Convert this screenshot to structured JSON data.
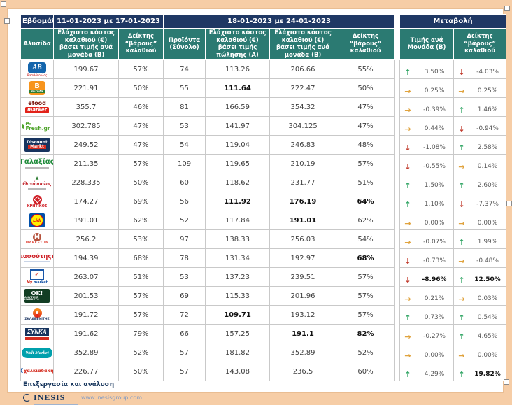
{
  "table": {
    "week_label": "Εβδομάδα:",
    "week1": "11-01-2023 με 17-01-2023",
    "week2": "18-01-2023 με 24-01-2023",
    "change_label": "Μεταβολή",
    "columns": [
      {
        "label": "Αλυσίδα"
      },
      {
        "label": "Ελάχιστο κόστος καλαθιού (€) βάσει τιμής ανά μονάδα (Β)"
      },
      {
        "label": "Δείκτης “βάρους” καλαθιού"
      },
      {
        "label": "Προϊόντα (Σύνολο)"
      },
      {
        "label": "Ελάχιστο κόστος καλαθιού (€) βάσει τιμής πώλησης (Α)"
      },
      {
        "label": "Ελάχιστο κόστος καλαθιού (€) βάσει τιμής ανά μονάδα (Β)"
      },
      {
        "label": "Δείκτης “βάρους” καλαθιού"
      },
      {
        "label": "Τιμής ανά Μονάδα (Β)"
      },
      {
        "label": "Δείκτης “βάρους” καλαθιού"
      }
    ],
    "rows": [
      {
        "name": "ΑΒ Βασιλόπουλος",
        "style": "ab",
        "logo_text": "AB",
        "logo_sub": "Βασιλόπουλος",
        "b1": "199.67",
        "idx1": "57%",
        "products": "74",
        "a2": "113.26",
        "b2": "206.66",
        "idx2": "55%",
        "cp_dir": "up",
        "cp_val": "3.50%",
        "ci_dir": "down",
        "ci_val": "-4.03%",
        "bold": []
      },
      {
        "name": "Bazaar",
        "style": "bazaar",
        "logo_text": "B",
        "logo_sub": "BAZAAR",
        "b1": "221.91",
        "idx1": "50%",
        "products": "55",
        "a2": "111.64",
        "b2": "222.47",
        "idx2": "50%",
        "cp_dir": "flat",
        "cp_val": "0.25%",
        "ci_dir": "flat",
        "ci_val": "0.25%",
        "bold": [
          "a2"
        ]
      },
      {
        "name": "efood market",
        "style": "efood",
        "logo_text": "efood",
        "logo_sub": "market",
        "b1": "355.7",
        "idx1": "46%",
        "products": "81",
        "a2": "166.59",
        "b2": "354.32",
        "idx2": "47%",
        "cp_dir": "flat",
        "cp_val": "-0.39%",
        "ci_dir": "up",
        "ci_val": "1.46%",
        "bold": []
      },
      {
        "name": "e-Fresh.gr",
        "style": "efresh",
        "logo_text": "e-Fresh.gr",
        "logo_sub": "",
        "b1": "302.785",
        "idx1": "47%",
        "products": "53",
        "a2": "141.97",
        "b2": "304.125",
        "idx2": "47%",
        "cp_dir": "flat",
        "cp_val": "0.44%",
        "ci_dir": "down",
        "ci_val": "-0.94%",
        "bold": []
      },
      {
        "name": "Discount Markt",
        "style": "discount",
        "logo_text": "Discount",
        "logo_sub": "Markt",
        "b1": "249.52",
        "idx1": "47%",
        "products": "54",
        "a2": "119.04",
        "b2": "246.83",
        "idx2": "48%",
        "cp_dir": "down",
        "cp_val": "-1.08%",
        "ci_dir": "up",
        "ci_val": "2.58%",
        "bold": []
      },
      {
        "name": "Γαλαξίας",
        "style": "galaxias",
        "logo_text": "Γαλαξίας",
        "logo_sub": "",
        "b1": "211.35",
        "idx1": "57%",
        "products": "109",
        "a2": "119.65",
        "b2": "210.19",
        "idx2": "57%",
        "cp_dir": "down",
        "cp_val": "-0.55%",
        "ci_dir": "flat",
        "ci_val": "0.14%",
        "bold": []
      },
      {
        "name": "Θανόπουλος",
        "style": "thanopoulos",
        "logo_text": "Θανόπουλος",
        "logo_sub": "",
        "b1": "228.335",
        "idx1": "50%",
        "products": "60",
        "a2": "118.62",
        "b2": "231.77",
        "idx2": "51%",
        "cp_dir": "up",
        "cp_val": "1.50%",
        "ci_dir": "up",
        "ci_val": "2.60%",
        "bold": []
      },
      {
        "name": "ΚΡΗΤΙΚΟΣ",
        "style": "kritikos",
        "logo_text": "ΚΡΗΤΙΚΟΣ",
        "logo_sub": "",
        "b1": "174.27",
        "idx1": "69%",
        "products": "56",
        "a2": "111.92",
        "b2": "176.19",
        "idx2": "64%",
        "cp_dir": "up",
        "cp_val": "1.10%",
        "ci_dir": "down",
        "ci_val": "-7.37%",
        "bold": [
          "a2",
          "b2",
          "idx2"
        ]
      },
      {
        "name": "Lidl",
        "style": "lidl",
        "logo_text": "Lidl",
        "logo_sub": "",
        "b1": "191.01",
        "idx1": "62%",
        "products": "52",
        "a2": "117.84",
        "b2": "191.01",
        "idx2": "62%",
        "cp_dir": "flat",
        "cp_val": "0.00%",
        "ci_dir": "flat",
        "ci_val": "0.00%",
        "bold": [
          "b2"
        ]
      },
      {
        "name": "Market In",
        "style": "marketin",
        "logo_text": "M",
        "logo_sub": "MARKET IN",
        "b1": "256.2",
        "idx1": "53%",
        "products": "97",
        "a2": "138.33",
        "b2": "256.03",
        "idx2": "54%",
        "cp_dir": "flat",
        "cp_val": "-0.07%",
        "ci_dir": "up",
        "ci_val": "1.99%",
        "bold": []
      },
      {
        "name": "Μασούτης",
        "style": "masoutis",
        "logo_text": "μασούτης",
        "logo_sub": "",
        "b1": "194.39",
        "idx1": "68%",
        "products": "78",
        "a2": "131.34",
        "b2": "192.97",
        "idx2": "68%",
        "cp_dir": "down",
        "cp_val": "-0.73%",
        "ci_dir": "flat",
        "ci_val": "-0.48%",
        "bold": [
          "idx2"
        ]
      },
      {
        "name": "My market",
        "style": "mymarket",
        "logo_text": "My",
        "logo_sub": "market",
        "b1": "263.07",
        "idx1": "51%",
        "products": "53",
        "a2": "137.23",
        "b2": "239.51",
        "idx2": "57%",
        "cp_dir": "down",
        "cp_val": "-8.96%",
        "ci_dir": "up",
        "ci_val": "12.50%",
        "bold": [
          "cp_val",
          "ci_val"
        ]
      },
      {
        "name": "ΟΚ! Anytime Markets",
        "style": "ok",
        "logo_text": "OK!",
        "logo_sub": "ANYTIME MARKETS",
        "b1": "201.53",
        "idx1": "57%",
        "products": "69",
        "a2": "115.33",
        "b2": "201.96",
        "idx2": "57%",
        "cp_dir": "flat",
        "cp_val": "0.21%",
        "ci_dir": "flat",
        "ci_val": "0.03%",
        "bold": []
      },
      {
        "name": "ΣΚΛΑΒΕΝΙΤΗΣ",
        "style": "sklavenitis",
        "logo_text": "ΣΚΛΑΒΕΝΙΤΗΣ",
        "logo_sub": "",
        "b1": "191.72",
        "idx1": "57%",
        "products": "72",
        "a2": "109.71",
        "b2": "193.12",
        "idx2": "57%",
        "cp_dir": "up",
        "cp_val": "0.73%",
        "ci_dir": "up",
        "ci_val": "0.54%",
        "bold": [
          "a2"
        ]
      },
      {
        "name": "ΣΥΝΚΑ",
        "style": "synka",
        "logo_text": "ΣYNKA",
        "logo_sub": "",
        "b1": "191.62",
        "idx1": "79%",
        "products": "66",
        "a2": "157.25",
        "b2": "191.1",
        "idx2": "82%",
        "cp_dir": "flat",
        "cp_val": "-0.27%",
        "ci_dir": "up",
        "ci_val": "4.65%",
        "bold": [
          "b2",
          "idx2"
        ]
      },
      {
        "name": "Wolt Market",
        "style": "wolt",
        "logo_text": "Wolt Market",
        "logo_sub": "",
        "b1": "352.89",
        "idx1": "52%",
        "products": "57",
        "a2": "181.82",
        "b2": "352.89",
        "idx2": "52%",
        "cp_dir": "flat",
        "cp_val": "0.00%",
        "ci_dir": "flat",
        "ci_val": "0.00%",
        "bold": []
      },
      {
        "name": "Χαλκιαδάκης",
        "style": "xalkiadakis",
        "logo_text": "X",
        "logo_sub": "χαλκιαδάκης",
        "b1": "226.77",
        "idx1": "50%",
        "products": "57",
        "a2": "143.08",
        "b2": "236.5",
        "idx2": "60%",
        "cp_dir": "up",
        "cp_val": "4.29%",
        "ci_dir": "up",
        "ci_val": "19.82%",
        "bold": [
          "ci_val"
        ]
      }
    ]
  },
  "footer": {
    "line1": "Επεξεργασία και ανάλυση",
    "brand": "INESIS",
    "url": "www.inesisgroup.com"
  },
  "colors": {
    "header_navy": "#1f3864",
    "header_teal": "#2b7a72",
    "arrow_up": "#2fa463",
    "arrow_down": "#c0392b",
    "arrow_flat": "#e0a33e",
    "frame": "#f6cda6"
  }
}
